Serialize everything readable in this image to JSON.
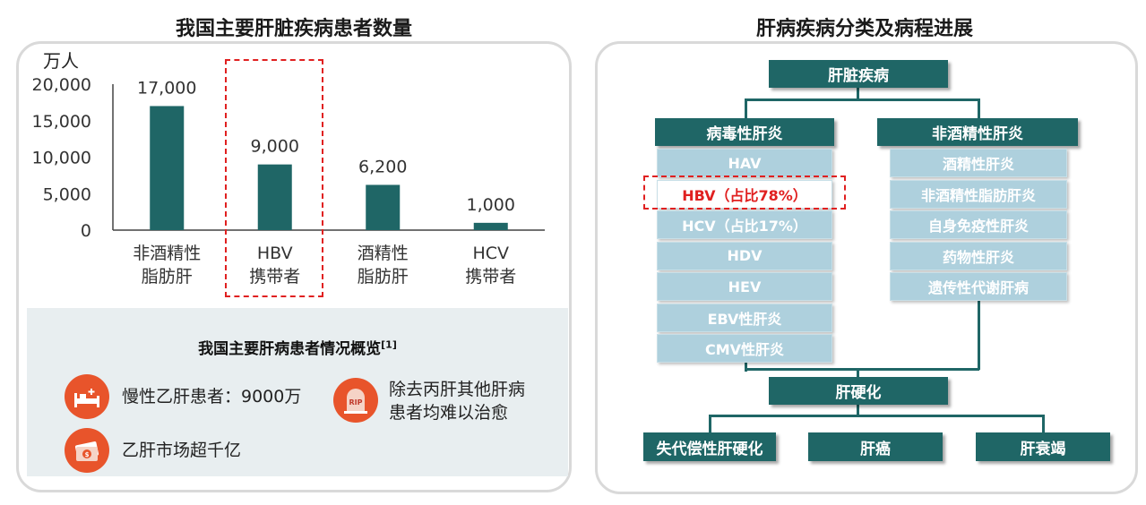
{
  "left": {
    "title": "我国主要肝脏疾病患者数量",
    "unit": "万人",
    "summary": {
      "title": "我国主要肝病患者情况概览",
      "title_sup": "[1]",
      "items": [
        {
          "icon": "hospital-bed-icon",
          "text": "慢性乙肝患者：9000万"
        },
        {
          "icon": "rip-tombstone-icon",
          "text": "除去丙肝其他肝病\n患者均难以治愈"
        },
        {
          "icon": "money-icon",
          "text": "乙肝市场超千亿"
        }
      ]
    }
  },
  "chart_data": {
    "type": "bar",
    "title": "我国主要肝脏疾病患者数量",
    "ylabel": "万人",
    "categories": [
      "非酒精性\n脂肪肝",
      "HBV\n携带者",
      "酒精性\n脂肪肝",
      "HCV\n携带者"
    ],
    "values": [
      17000,
      9000,
      6200,
      1000
    ],
    "value_labels": [
      "17,000",
      "9,000",
      "6,200",
      "1,000"
    ],
    "ylim": [
      0,
      20000
    ],
    "yticks": [
      "0",
      "5,000",
      "10,000",
      "15,000",
      "20,000"
    ],
    "highlight_index": 1,
    "bar_color": "#1f6666",
    "grid": false
  },
  "right": {
    "title": "肝病疾病分类及病程进展",
    "root": "肝脏疾病",
    "viral": {
      "header": "病毒性肝炎",
      "items": [
        "HAV",
        "HBV（占比78%）",
        "HCV（占比17%）",
        "HDV",
        "HEV",
        "EBV性肝炎",
        "CMV性肝炎"
      ],
      "highlight_index": 1
    },
    "nonviral": {
      "header": "非酒精性肝炎",
      "items": [
        "酒精性肝炎",
        "非酒精性脂肪肝炎",
        "自身免疫性肝炎",
        "药物性肝炎",
        "遗传性代谢肝病"
      ]
    },
    "cirrhosis": "肝硬化",
    "outcomes": [
      "失代偿性肝硬化",
      "肝癌",
      "肝衰竭"
    ]
  },
  "colors": {
    "dark": "#1f6666",
    "light": "#aed0dd",
    "highlight": "#e02020",
    "icon": "#e8542b"
  }
}
